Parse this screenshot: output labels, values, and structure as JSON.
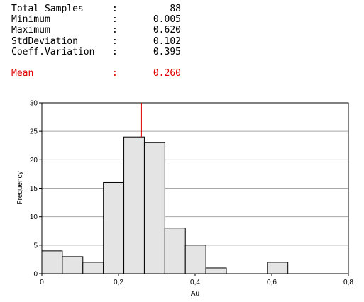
{
  "stats": [
    {
      "label": "Total Samples",
      "sep": ":",
      "value": "88"
    },
    {
      "label": "Minimum",
      "sep": ":",
      "value": "0.005"
    },
    {
      "label": "Maximum",
      "sep": ":",
      "value": "0.620"
    },
    {
      "label": "StdDeviation",
      "sep": ":",
      "value": "0.102"
    },
    {
      "label": "Coeff.Variation",
      "sep": ":",
      "value": "0.395"
    }
  ],
  "mean": {
    "label": "Mean",
    "sep": ":",
    "value": "0.260",
    "color": "#e00000"
  },
  "chart_data": {
    "type": "bar",
    "subtype": "histogram",
    "xlabel": "Au",
    "ylabel": "Frequency",
    "xlim": [
      0,
      0.8
    ],
    "ylim": [
      0,
      30
    ],
    "x_ticks": [
      "0",
      "0,2",
      "0,4",
      "0,6",
      "0,8"
    ],
    "y_ticks": [
      "0",
      "5",
      "10",
      "15",
      "20",
      "25",
      "30"
    ],
    "bin_width": 0.0535,
    "bins": [
      {
        "start": 0.0,
        "value": 4
      },
      {
        "start": 0.0535,
        "value": 3
      },
      {
        "start": 0.107,
        "value": 2
      },
      {
        "start": 0.1605,
        "value": 16
      },
      {
        "start": 0.214,
        "value": 24
      },
      {
        "start": 0.2675,
        "value": 23
      },
      {
        "start": 0.321,
        "value": 8
      },
      {
        "start": 0.3745,
        "value": 5
      },
      {
        "start": 0.428,
        "value": 1
      },
      {
        "start": 0.4815,
        "value": 0
      },
      {
        "start": 0.535,
        "value": 0
      },
      {
        "start": 0.5885,
        "value": 2
      }
    ],
    "mean_line": 0.26,
    "grid": true,
    "bar_fill": "#e4e4e4",
    "mean_line_color": "#e00000"
  }
}
